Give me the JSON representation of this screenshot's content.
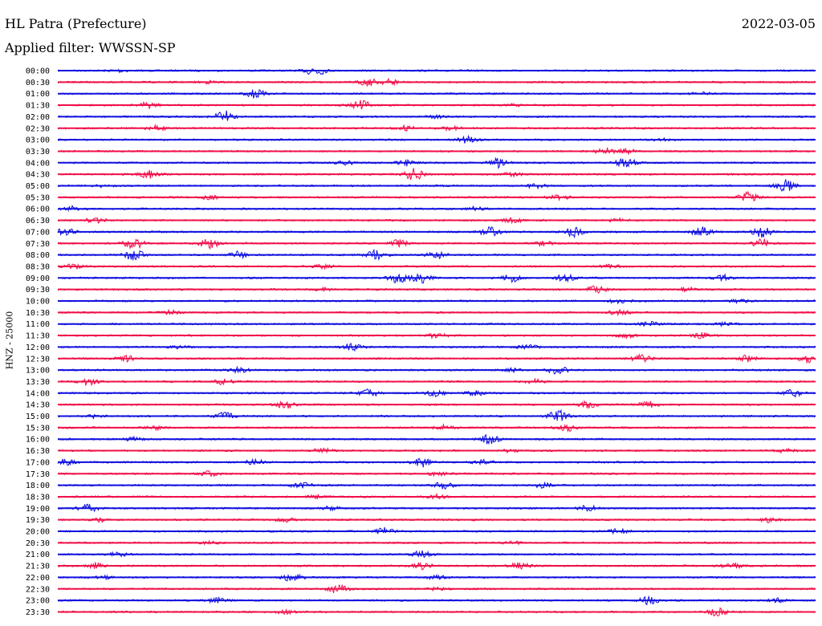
{
  "header": {
    "station": "HL Patra (Prefecture)",
    "date": "2022-03-05",
    "filter": "Applied filter: WWSSN-SP"
  },
  "chart_data": {
    "type": "line",
    "subtype": "helicorder",
    "ylabel": "HNZ - 25000",
    "colors": [
      "#1010e0",
      "#f0104a"
    ],
    "grid": false,
    "rows": [
      {
        "label": "00:00",
        "bursts": [
          [
            0.34,
            1.0
          ],
          [
            0.08,
            0.25
          ]
        ]
      },
      {
        "label": "00:30",
        "bursts": [
          [
            0.41,
            0.6
          ],
          [
            0.44,
            0.5
          ],
          [
            0.2,
            0.2
          ]
        ]
      },
      {
        "label": "01:00",
        "bursts": [
          [
            0.26,
            0.8
          ],
          [
            0.85,
            0.2
          ]
        ]
      },
      {
        "label": "01:30",
        "bursts": [
          [
            0.12,
            0.5
          ],
          [
            0.4,
            0.8
          ],
          [
            0.6,
            0.2
          ]
        ]
      },
      {
        "label": "02:00",
        "bursts": [
          [
            0.22,
            1.0
          ],
          [
            0.5,
            0.2
          ]
        ]
      },
      {
        "label": "02:30",
        "bursts": [
          [
            0.13,
            0.4
          ],
          [
            0.46,
            0.4
          ],
          [
            0.52,
            0.3
          ]
        ]
      },
      {
        "label": "03:00",
        "bursts": [
          [
            0.54,
            0.6
          ],
          [
            0.8,
            0.2
          ]
        ]
      },
      {
        "label": "03:30",
        "bursts": [
          [
            0.72,
            0.5
          ],
          [
            0.75,
            0.4
          ]
        ]
      },
      {
        "label": "04:00",
        "bursts": [
          [
            0.58,
            0.8
          ],
          [
            0.75,
            0.8
          ],
          [
            0.46,
            0.5
          ],
          [
            0.38,
            0.3
          ]
        ]
      },
      {
        "label": "04:30",
        "bursts": [
          [
            0.12,
            0.7
          ],
          [
            0.47,
            1.0
          ],
          [
            0.6,
            0.3
          ]
        ]
      },
      {
        "label": "05:00",
        "bursts": [
          [
            0.96,
            1.0
          ],
          [
            0.63,
            0.4
          ],
          [
            0.06,
            0.2
          ]
        ]
      },
      {
        "label": "05:30",
        "bursts": [
          [
            0.91,
            0.9
          ],
          [
            0.66,
            0.5
          ],
          [
            0.2,
            0.3
          ]
        ]
      },
      {
        "label": "06:00",
        "bursts": [
          [
            0.02,
            0.4
          ],
          [
            0.55,
            0.3
          ]
        ]
      },
      {
        "label": "06:30",
        "bursts": [
          [
            0.05,
            0.5
          ],
          [
            0.6,
            0.4
          ],
          [
            0.74,
            0.3
          ]
        ]
      },
      {
        "label": "07:00",
        "bursts": [
          [
            0.01,
            0.6
          ],
          [
            0.57,
            0.8
          ],
          [
            0.68,
            0.9
          ],
          [
            0.85,
            0.9
          ],
          [
            0.93,
            0.9
          ]
        ]
      },
      {
        "label": "07:30",
        "bursts": [
          [
            0.1,
            1.0
          ],
          [
            0.2,
            0.8
          ],
          [
            0.45,
            0.6
          ],
          [
            0.64,
            0.4
          ],
          [
            0.93,
            0.7
          ]
        ]
      },
      {
        "label": "08:00",
        "bursts": [
          [
            0.1,
            1.0
          ],
          [
            0.24,
            0.6
          ],
          [
            0.42,
            0.8
          ],
          [
            0.5,
            0.6
          ]
        ]
      },
      {
        "label": "08:30",
        "bursts": [
          [
            0.02,
            0.4
          ],
          [
            0.35,
            0.3
          ],
          [
            0.73,
            0.3
          ]
        ]
      },
      {
        "label": "09:00",
        "bursts": [
          [
            0.45,
            1.0
          ],
          [
            0.48,
            0.8
          ],
          [
            0.6,
            0.7
          ],
          [
            0.67,
            0.6
          ],
          [
            0.88,
            0.5
          ]
        ]
      },
      {
        "label": "09:30",
        "bursts": [
          [
            0.71,
            0.6
          ],
          [
            0.35,
            0.3
          ],
          [
            0.83,
            0.3
          ]
        ]
      },
      {
        "label": "10:00",
        "bursts": [
          [
            0.74,
            0.4
          ],
          [
            0.9,
            0.3
          ]
        ]
      },
      {
        "label": "10:30",
        "bursts": [
          [
            0.74,
            0.5
          ],
          [
            0.15,
            0.3
          ]
        ]
      },
      {
        "label": "11:00",
        "bursts": [
          [
            0.78,
            0.4
          ],
          [
            0.88,
            0.3
          ]
        ]
      },
      {
        "label": "11:30",
        "bursts": [
          [
            0.5,
            0.5
          ],
          [
            0.75,
            0.4
          ],
          [
            0.85,
            0.5
          ]
        ]
      },
      {
        "label": "12:00",
        "bursts": [
          [
            0.39,
            0.7
          ],
          [
            0.62,
            0.4
          ],
          [
            0.16,
            0.2
          ]
        ]
      },
      {
        "label": "12:30",
        "bursts": [
          [
            0.09,
            0.5
          ],
          [
            0.77,
            0.6
          ],
          [
            0.91,
            0.5
          ],
          [
            0.99,
            0.7
          ]
        ]
      },
      {
        "label": "13:00",
        "bursts": [
          [
            0.66,
            0.8
          ],
          [
            0.24,
            0.4
          ],
          [
            0.6,
            0.3
          ]
        ]
      },
      {
        "label": "13:30",
        "bursts": [
          [
            0.04,
            0.6
          ],
          [
            0.22,
            0.5
          ],
          [
            0.63,
            0.4
          ]
        ]
      },
      {
        "label": "14:00",
        "bursts": [
          [
            0.41,
            0.7
          ],
          [
            0.5,
            0.6
          ],
          [
            0.55,
            0.6
          ],
          [
            0.97,
            0.6
          ]
        ]
      },
      {
        "label": "14:30",
        "bursts": [
          [
            0.3,
            0.6
          ],
          [
            0.7,
            0.6
          ],
          [
            0.78,
            0.5
          ]
        ]
      },
      {
        "label": "15:00",
        "bursts": [
          [
            0.22,
            0.6
          ],
          [
            0.66,
            1.0
          ],
          [
            0.05,
            0.3
          ]
        ]
      },
      {
        "label": "15:30",
        "bursts": [
          [
            0.67,
            0.6
          ],
          [
            0.13,
            0.3
          ],
          [
            0.51,
            0.4
          ]
        ]
      },
      {
        "label": "16:00",
        "bursts": [
          [
            0.57,
            0.8
          ],
          [
            0.1,
            0.3
          ]
        ]
      },
      {
        "label": "16:30",
        "bursts": [
          [
            0.35,
            0.4
          ],
          [
            0.6,
            0.3
          ],
          [
            0.96,
            0.3
          ]
        ]
      },
      {
        "label": "17:00",
        "bursts": [
          [
            0.01,
            0.5
          ],
          [
            0.48,
            0.8
          ],
          [
            0.26,
            0.4
          ],
          [
            0.56,
            0.4
          ]
        ]
      },
      {
        "label": "17:30",
        "bursts": [
          [
            0.2,
            0.4
          ],
          [
            0.5,
            0.3
          ]
        ]
      },
      {
        "label": "18:00",
        "bursts": [
          [
            0.32,
            0.5
          ],
          [
            0.51,
            0.6
          ],
          [
            0.64,
            0.4
          ]
        ]
      },
      {
        "label": "18:30",
        "bursts": [
          [
            0.5,
            0.4
          ],
          [
            0.34,
            0.3
          ]
        ]
      },
      {
        "label": "19:00",
        "bursts": [
          [
            0.04,
            0.7
          ],
          [
            0.7,
            0.5
          ],
          [
            0.36,
            0.3
          ]
        ]
      },
      {
        "label": "19:30",
        "bursts": [
          [
            0.06,
            0.3
          ],
          [
            0.94,
            0.4
          ],
          [
            0.3,
            0.3
          ]
        ]
      },
      {
        "label": "20:00",
        "bursts": [
          [
            0.43,
            0.6
          ],
          [
            0.74,
            0.5
          ]
        ]
      },
      {
        "label": "20:30",
        "bursts": [
          [
            0.2,
            0.2
          ],
          [
            0.6,
            0.2
          ]
        ]
      },
      {
        "label": "21:00",
        "bursts": [
          [
            0.48,
            0.6
          ],
          [
            0.08,
            0.3
          ]
        ]
      },
      {
        "label": "21:30",
        "bursts": [
          [
            0.05,
            0.5
          ],
          [
            0.48,
            0.7
          ],
          [
            0.61,
            0.6
          ],
          [
            0.89,
            0.5
          ]
        ]
      },
      {
        "label": "22:00",
        "bursts": [
          [
            0.31,
            0.7
          ],
          [
            0.06,
            0.3
          ],
          [
            0.5,
            0.3
          ]
        ]
      },
      {
        "label": "22:30",
        "bursts": [
          [
            0.37,
            0.8
          ],
          [
            0.5,
            0.2
          ]
        ]
      },
      {
        "label": "23:00",
        "bursts": [
          [
            0.21,
            0.4
          ],
          [
            0.78,
            0.7
          ],
          [
            0.95,
            0.3
          ]
        ]
      },
      {
        "label": "23:30",
        "bursts": [
          [
            0.87,
            0.7
          ],
          [
            0.3,
            0.3
          ]
        ]
      }
    ]
  }
}
